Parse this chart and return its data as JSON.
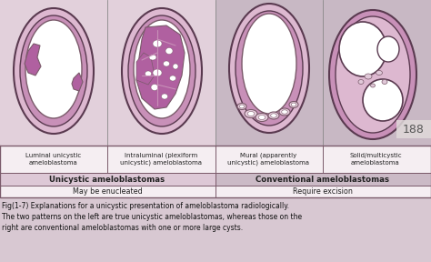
{
  "bg_left": "#e2d0db",
  "bg_right": "#c8b8c4",
  "bg_overall": "#d8c8d2",
  "border_dark": "#5a3a50",
  "border_mid": "#7a5a6a",
  "pink_fill": "#b060a0",
  "pink_mid": "#c890b8",
  "pink_light": "#ddb8d0",
  "pink_vlight": "#ead0e0",
  "white_fill": "#ffffff",
  "table_bg": "#f5eef2",
  "table_header_left": "#ddc8d6",
  "table_header_right": "#cbbac6",
  "labels": [
    "Luminal unicystic\nameloblastoma",
    "Intraluminal (plexiform\nunicystic) ameloblastoma",
    "Mural (apparently\nunicystic) ameloblastoma",
    "Solid/multicystic\nameloblastoma"
  ],
  "group_labels": [
    "Unicystic ameloblastomas",
    "Conventional ameloblastomas"
  ],
  "treatment_labels": [
    "May be enucleated",
    "Require excision"
  ],
  "caption": "Fig(1-7) Explanations for a unicystic presentation of ameloblastoma radiologically.\nThe two patterns on the left are true unicystic ameloblastomas, whereas those on the\nright are conventional ameloblastomas with one or more large cysts.",
  "page_number": "188"
}
